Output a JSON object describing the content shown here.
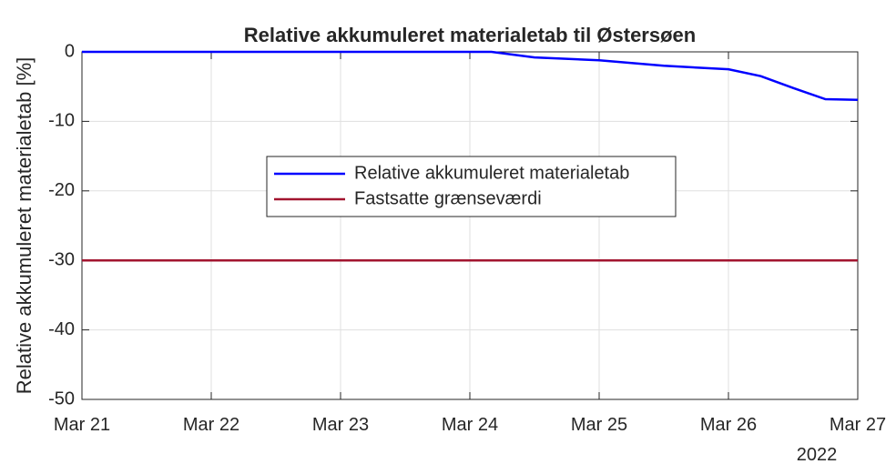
{
  "chart_data": {
    "type": "line",
    "title": "Relative akkumuleret materialetab til Østersøen",
    "ylabel": "Relative akkumuleret materialetab [%]",
    "x_secondary_label": "2022",
    "xlim": [
      "2022-03-21T00:00",
      "2022-03-27T00:00"
    ],
    "xticks": [
      {
        "value": "2022-03-21T00:00",
        "label": "Mar 21"
      },
      {
        "value": "2022-03-22T00:00",
        "label": "Mar 22"
      },
      {
        "value": "2022-03-23T00:00",
        "label": "Mar 23"
      },
      {
        "value": "2022-03-24T00:00",
        "label": "Mar 24"
      },
      {
        "value": "2022-03-25T00:00",
        "label": "Mar 25"
      },
      {
        "value": "2022-03-26T00:00",
        "label": "Mar 26"
      },
      {
        "value": "2022-03-27T00:00",
        "label": "Mar 27"
      }
    ],
    "ylim": [
      -50,
      0
    ],
    "yticks": [
      -50,
      -40,
      -30,
      -20,
      -10,
      0
    ],
    "grid": true,
    "legend": "center",
    "series": [
      {
        "name": "Relative akkumuleret materialetab",
        "color": "#0000ff",
        "x": [
          "2022-03-21T00:00",
          "2022-03-24T00:00",
          "2022-03-24T04:00",
          "2022-03-24T12:00",
          "2022-03-25T00:00",
          "2022-03-25T12:00",
          "2022-03-26T00:00",
          "2022-03-26T06:00",
          "2022-03-26T12:00",
          "2022-03-26T18:00",
          "2022-03-27T00:00"
        ],
        "values": [
          0,
          0,
          0,
          -0.8,
          -1.2,
          -2,
          -2.5,
          -3.5,
          -5.2,
          -6.8,
          -6.9
        ]
      },
      {
        "name": "Fastsatte grænseværdi",
        "color": "#a2142f",
        "x": [
          "2022-03-21T00:00",
          "2022-03-27T00:00"
        ],
        "values": [
          -30,
          -30
        ]
      }
    ]
  }
}
